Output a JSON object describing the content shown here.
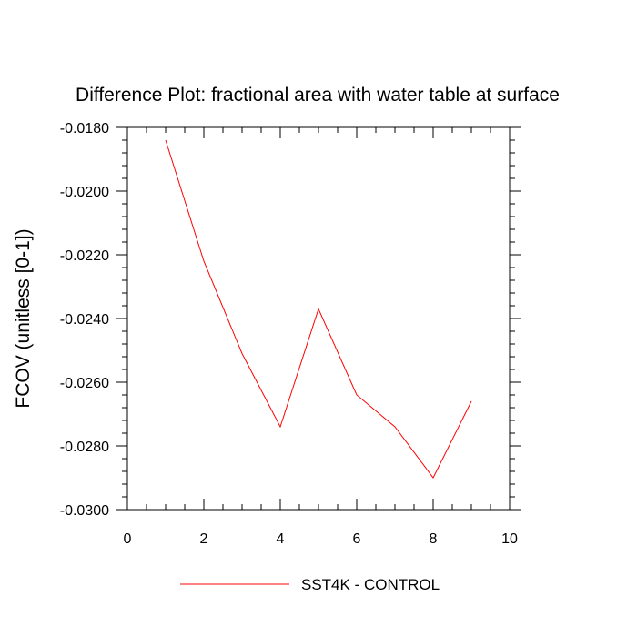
{
  "chart_data": {
    "type": "line",
    "title": "Difference Plot: fractional area with water table at surface",
    "xlabel": "",
    "ylabel": "FCOV  (unitless [0-1])",
    "xlim": [
      0,
      10
    ],
    "ylim": [
      -0.03,
      -0.018
    ],
    "x_ticks": [
      0,
      2,
      4,
      6,
      8,
      10
    ],
    "x_tick_labels": [
      "0",
      "2",
      "4",
      "6",
      "8",
      "10"
    ],
    "y_ticks": [
      -0.018,
      -0.02,
      -0.022,
      -0.024,
      -0.026,
      -0.028,
      -0.03
    ],
    "y_tick_labels": [
      "-0.0180",
      "-0.0200",
      "-0.0220",
      "-0.0240",
      "-0.0260",
      "-0.0280",
      "-0.0300"
    ],
    "grid": false,
    "legend_position": "bottom-center",
    "series": [
      {
        "name": "SST4K - CONTROL",
        "color": "#ff0000",
        "x": [
          1,
          2,
          3,
          4,
          5,
          6,
          7,
          8,
          9
        ],
        "values": [
          -0.0184,
          -0.0222,
          -0.0251,
          -0.0274,
          -0.0237,
          -0.0264,
          -0.0274,
          -0.029,
          -0.0266
        ]
      }
    ]
  }
}
